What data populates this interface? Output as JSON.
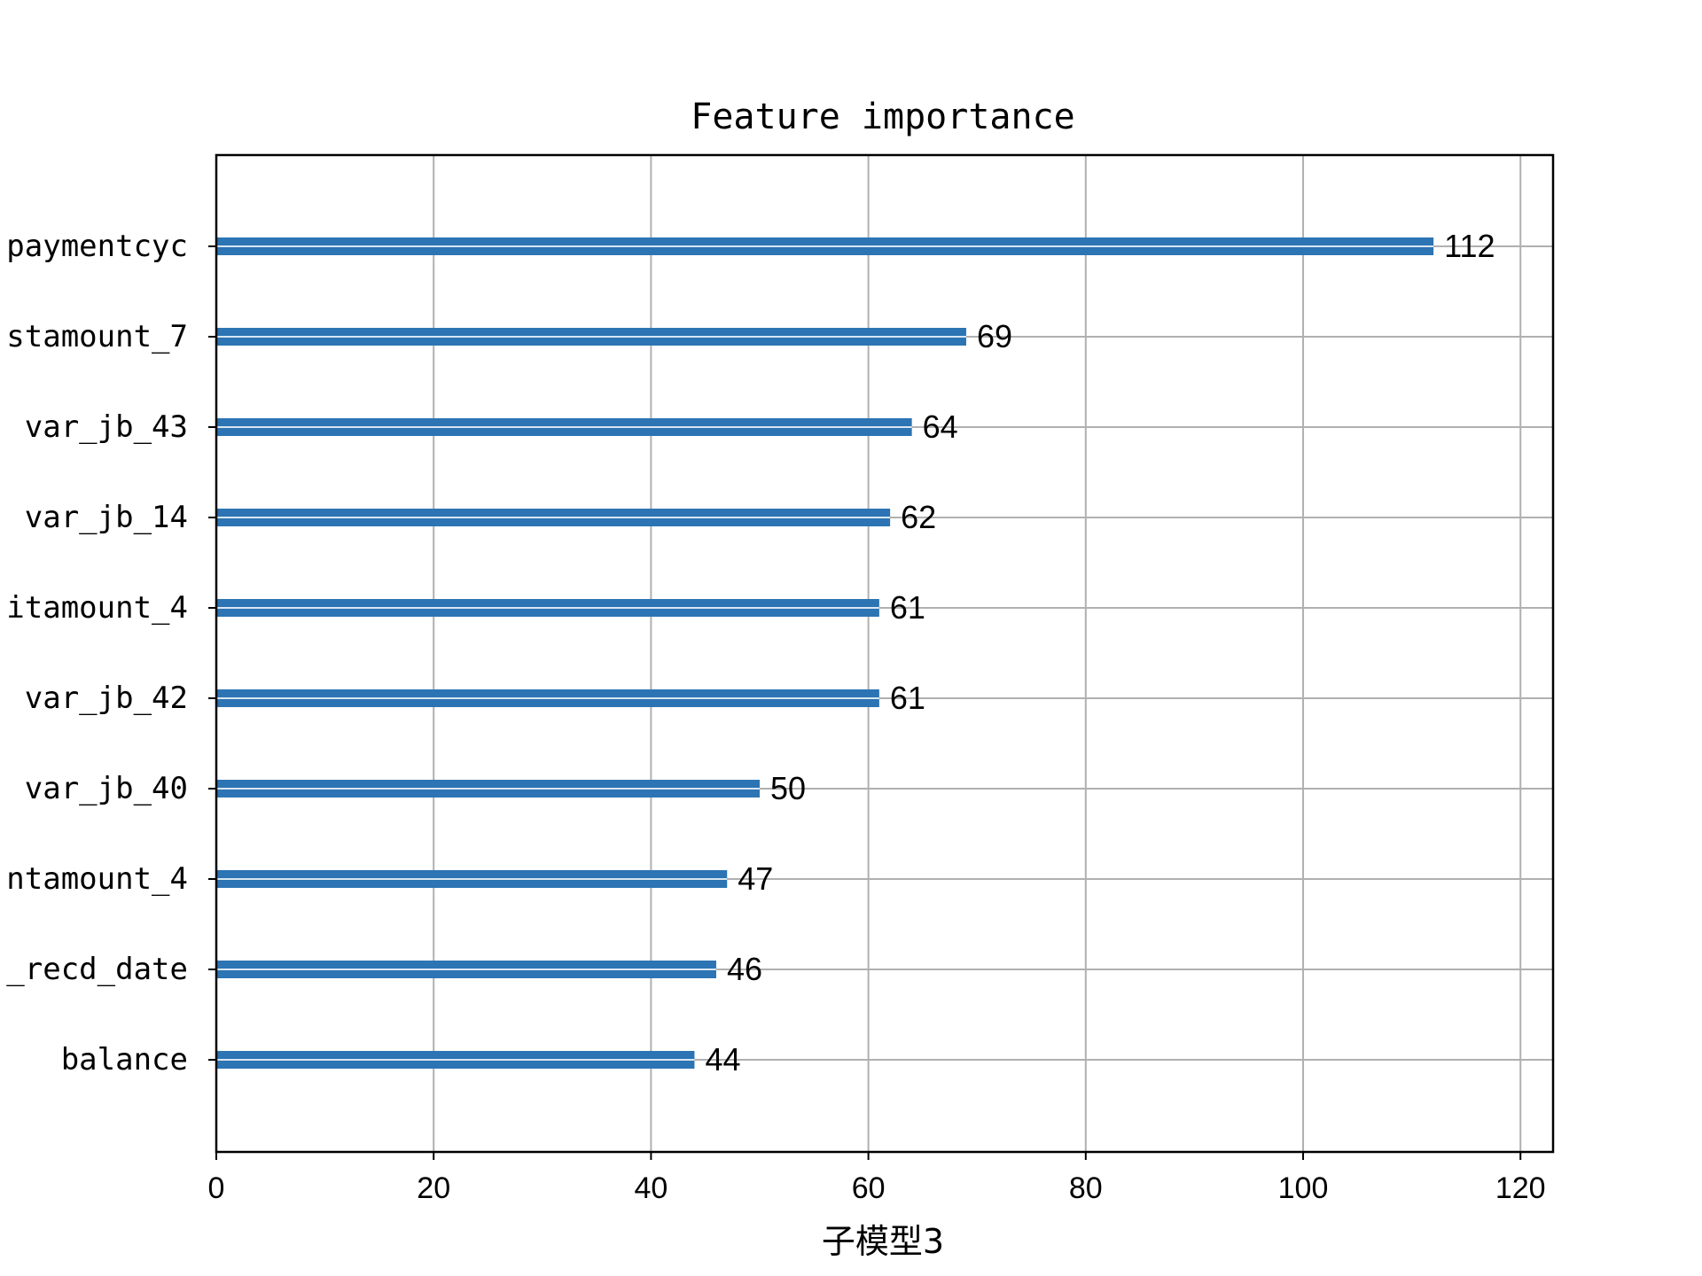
{
  "chart_data": {
    "type": "bar",
    "orientation": "horizontal",
    "title": "Feature importance",
    "xlabel": "子模型3",
    "ylabel": "",
    "categories": [
      "paymentcyc",
      "stamount_7",
      "var_jb_43",
      "var_jb_14",
      "itamount_4",
      "var_jb_42",
      "var_jb_40",
      "ntamount_4",
      "_recd_date",
      "balance"
    ],
    "values": [
      112,
      69,
      64,
      62,
      61,
      61,
      50,
      47,
      46,
      44
    ],
    "xlim": [
      0,
      123
    ],
    "xticks": [
      "0",
      "20",
      "40",
      "60",
      "80",
      "100",
      "120"
    ],
    "grid": true,
    "bar_color": "#2c74b3"
  }
}
